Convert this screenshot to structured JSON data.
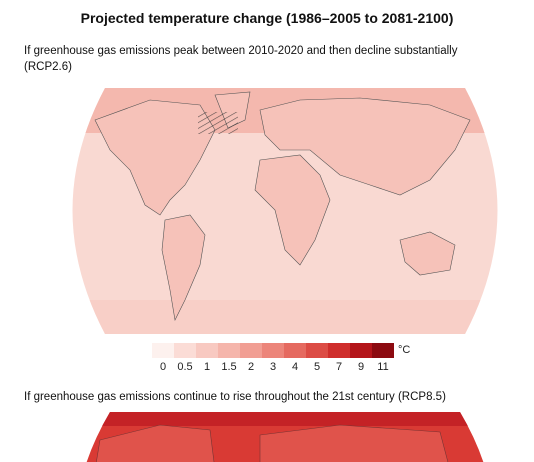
{
  "header": {
    "title": "Projected temperature change (1986–2005 to 2081-2100)"
  },
  "maps": [
    {
      "caption": "If greenhouse gas emissions peak between 2010-2020 and then decline substantially",
      "scenario": "(RCP2.6)"
    },
    {
      "caption": "If greenhouse gas emissions continue to rise throughout the 21st century (RCP8.5)"
    }
  ],
  "legend": {
    "ticks": [
      0,
      0.5,
      1,
      1.5,
      2,
      3,
      4,
      5,
      7,
      9,
      11
    ],
    "unit": "°C",
    "colors": [
      "#fdf1ee",
      "#fbdcd6",
      "#f8c9c1",
      "#f5b5ab",
      "#f19e93",
      "#ec857a",
      "#e56a60",
      "#dc4c45",
      "#cf2e2c",
      "#b4151a",
      "#8c0a10"
    ]
  }
}
